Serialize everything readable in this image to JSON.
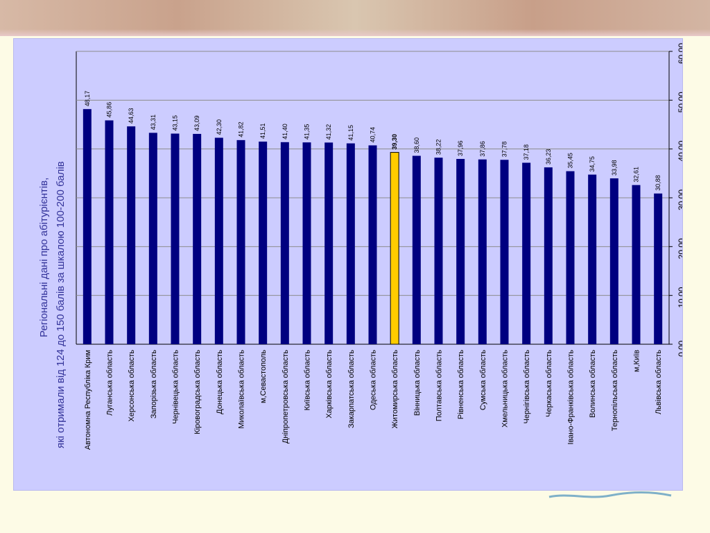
{
  "slide": {
    "title_line1": "Регіональні дані про абітурієнтів,",
    "title_line2": "які отримали від 124 до 150 балів за шкалою 100-200 балів"
  },
  "colors": {
    "bar": "#000080",
    "highlight_bar": "#ffcc00",
    "panel": "#ccccff",
    "title": "#333399"
  },
  "chart_data": {
    "type": "bar",
    "orientation": "vertical (slide rotated 90°)",
    "title": "",
    "ylim": [
      0,
      60
    ],
    "yticks": [
      "0,00",
      "10,00",
      "20,00",
      "30,00",
      "40,00",
      "50,00",
      "60,00"
    ],
    "grid": true,
    "highlight_category": "Житомирська область",
    "categories": [
      "Автономна Республіка Крим",
      "Луганська область",
      "Херсонська область",
      "Запорізька область",
      "Чернівецька область",
      "Кіровоградська область",
      "Донецька область",
      "Миколаївська область",
      "м,Севастополь",
      "Дніпропетровська область",
      "Київська область",
      "Харківська область",
      "Закарпатська область",
      "Одеська область",
      "Житомирська область",
      "Вінницька область",
      "Полтавська область",
      "Рівненська область",
      "Сумська область",
      "Хмельницька область",
      "Чернігівська область",
      "Черкаська область",
      "Івано-Франківська область",
      "Волинська область",
      "Тернопільська область",
      "м,Київ",
      "Львівська область"
    ],
    "values": [
      48.17,
      45.86,
      44.63,
      43.31,
      43.15,
      43.09,
      42.3,
      41.82,
      41.51,
      41.4,
      41.35,
      41.32,
      41.15,
      40.74,
      39.3,
      38.6,
      38.22,
      37.96,
      37.86,
      37.78,
      37.18,
      36.23,
      35.45,
      34.75,
      33.98,
      32.61,
      30.88
    ],
    "value_labels": [
      "48,17",
      "45,86",
      "44,63",
      "43,31",
      "43,15",
      "43,09",
      "42,30",
      "41,82",
      "41,51",
      "41,40",
      "41,35",
      "41,32",
      "41,15",
      "40,74",
      "39,30",
      "38,60",
      "38,22",
      "37,96",
      "37,86",
      "37,78",
      "37,18",
      "36,23",
      "35,45",
      "34,75",
      "33,98",
      "32,61",
      "30,88"
    ]
  }
}
